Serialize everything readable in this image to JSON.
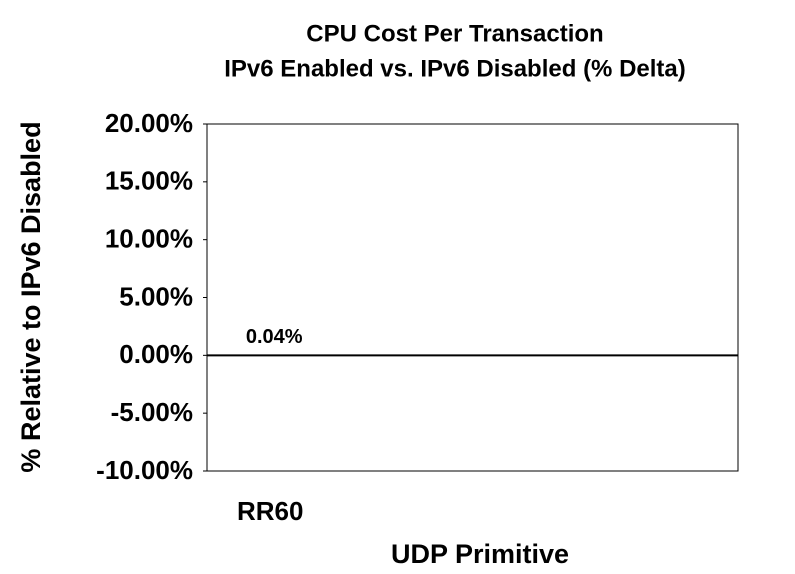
{
  "chart_data": {
    "type": "bar",
    "title": "CPU Cost Per Transaction",
    "subtitle": "IPv6 Enabled  vs.  IPv6 Disabled  (% Delta)",
    "x_label": "UDP Primitive",
    "y_label": "% Relative to IPv6 Disabled",
    "categories": [
      "RR60"
    ],
    "values": [
      0.04
    ],
    "value_labels": [
      "0.04%"
    ],
    "color": "#000000",
    "ylim": [
      -10,
      20
    ],
    "yticks": [
      {
        "value": -10,
        "label": "-10.00%"
      },
      {
        "value": -5,
        "label": "-5.00%"
      },
      {
        "value": 0,
        "label": "0.00%"
      },
      {
        "value": 5,
        "label": "5.00%"
      },
      {
        "value": 10,
        "label": "10.00%"
      },
      {
        "value": 15,
        "label": "15.00%"
      },
      {
        "value": 20,
        "label": "20.00%"
      }
    ]
  }
}
